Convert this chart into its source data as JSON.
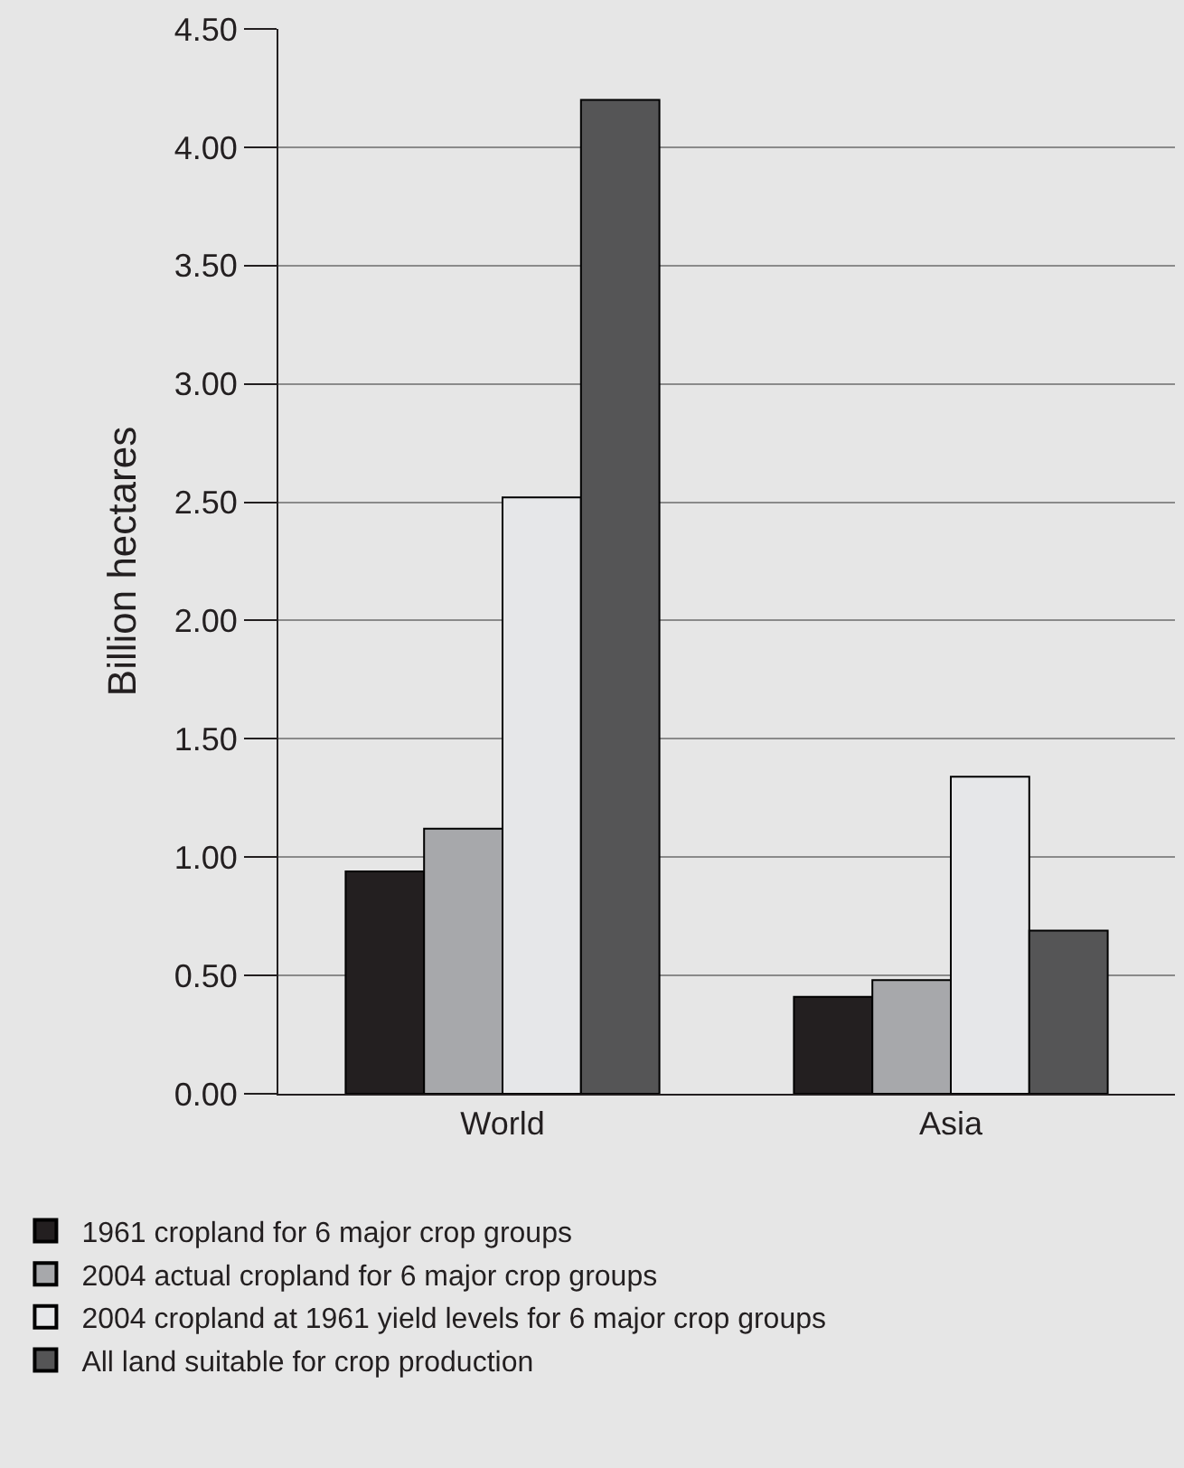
{
  "chart_data": {
    "type": "bar",
    "ylabel": "Billion hectares",
    "categories": [
      "World",
      "Asia"
    ],
    "series": [
      {
        "name": "1961 cropland for 6 major crop groups",
        "color": "#231f20",
        "values": [
          0.94,
          0.41
        ]
      },
      {
        "name": "2004 actual cropland for 6 major crop groups",
        "color": "#a7a8ab",
        "values": [
          1.12,
          0.48
        ]
      },
      {
        "name": "2004 cropland at 1961 yield levels for 6 major crop groups",
        "color": "#e6e7e9",
        "values": [
          2.52,
          1.34
        ]
      },
      {
        "name": "All land suitable for crop production",
        "color": "#555556",
        "values": [
          4.2,
          0.69
        ]
      }
    ],
    "ylim": [
      0,
      4.5
    ],
    "yticks": [
      {
        "value": 0,
        "label": "0.00"
      },
      {
        "value": 0.5,
        "label": "0.50"
      },
      {
        "value": 1,
        "label": "1.00"
      },
      {
        "value": 1.5,
        "label": "1.50"
      },
      {
        "value": 2,
        "label": "2.00"
      },
      {
        "value": 2.5,
        "label": "2.50"
      },
      {
        "value": 3,
        "label": "3.00"
      },
      {
        "value": 3.5,
        "label": "3.50"
      },
      {
        "value": 4,
        "label": "4.00"
      },
      {
        "value": 4.5,
        "label": "4.50"
      }
    ],
    "grid": "y",
    "legend": "bottom"
  }
}
